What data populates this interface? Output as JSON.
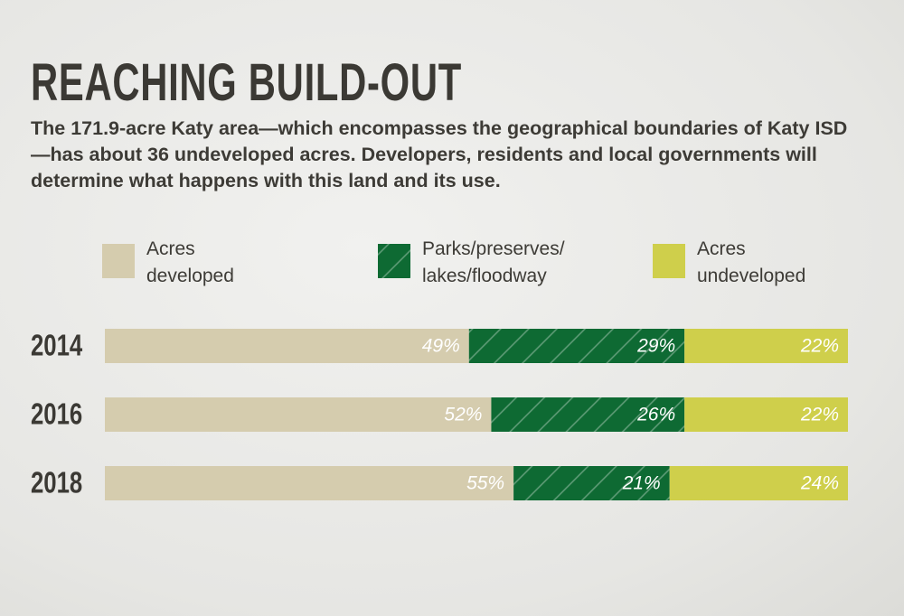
{
  "chart_data": {
    "type": "stacked-bar-horizontal",
    "title": "REACHING BUILD-OUT",
    "subtitle": "The 171.9-acre Katy area—which encompasses the geographical boundaries of Katy ISD—has about 36 undeveloped acres. Developers, residents and local governments will determine what happens with this land and its use.",
    "categories": [
      "2014",
      "2016",
      "2018"
    ],
    "series": [
      {
        "name": "Acres\ndeveloped",
        "color": "#d5ccae",
        "values": [
          49,
          52,
          55
        ],
        "value_labels": [
          "49%",
          "52%",
          "55%"
        ]
      },
      {
        "name": "Parks/preserves/\nlakes/floodway",
        "color": "#0e6a33",
        "hatch": true,
        "values": [
          29,
          26,
          21
        ],
        "value_labels": [
          "29%",
          "26%",
          "21%"
        ]
      },
      {
        "name": "Acres\nundeveloped",
        "color": "#cfcf4b",
        "values": [
          22,
          22,
          24
        ],
        "value_labels": [
          "22%",
          "22%",
          "24%"
        ]
      }
    ]
  }
}
